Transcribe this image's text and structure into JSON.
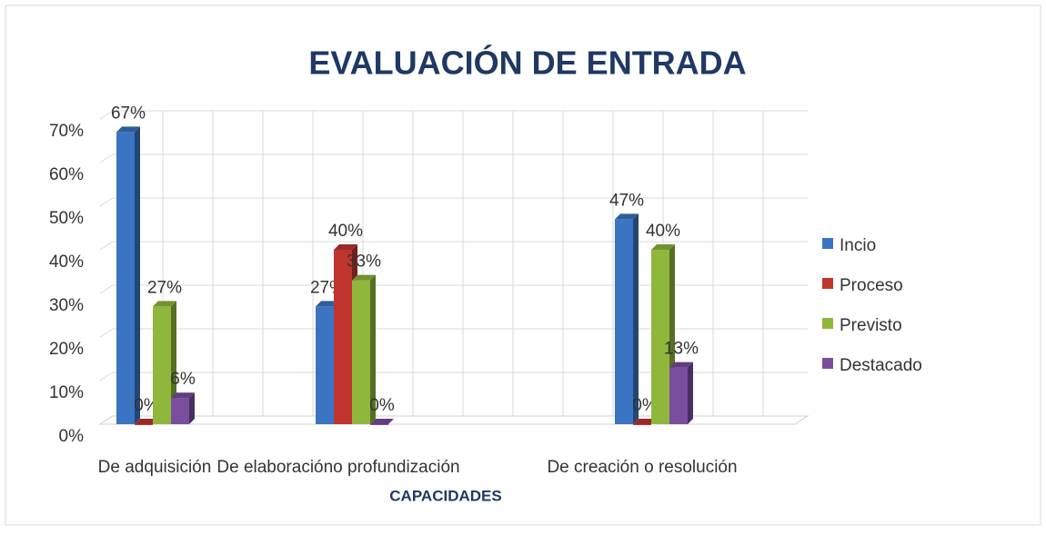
{
  "chart_data": {
    "type": "bar3d",
    "title": "EVALUACIÓN DE ENTRADA",
    "x_label": "CAPACIDADES",
    "categories": [
      "De adquisición",
      "De elaboracióno profundización",
      "De creación o resolución"
    ],
    "series": [
      {
        "name": "Incio",
        "color": "#3b74c2",
        "values": [
          67,
          27,
          47
        ],
        "value_labels": [
          "67%",
          "27%",
          "47%"
        ]
      },
      {
        "name": "Proceso",
        "color": "#c0342e",
        "values": [
          0,
          40,
          0
        ],
        "value_labels": [
          "0%",
          "40%",
          "0%"
        ]
      },
      {
        "name": "Previsto",
        "color": "#8fb73c",
        "values": [
          27,
          33,
          40
        ],
        "value_labels": [
          "27%",
          "33%",
          "40%"
        ]
      },
      {
        "name": "Destacado",
        "color": "#7a4e9e",
        "values": [
          6,
          0,
          13
        ],
        "value_labels": [
          "6%",
          "0%",
          "13%"
        ]
      }
    ],
    "ylim": [
      0,
      70
    ],
    "yticks": [
      {
        "value": 0,
        "label": "0%"
      },
      {
        "value": 10,
        "label": "10%"
      },
      {
        "value": 20,
        "label": "20%"
      },
      {
        "value": 30,
        "label": "30%"
      },
      {
        "value": 40,
        "label": "40%"
      },
      {
        "value": 50,
        "label": "50%"
      },
      {
        "value": 60,
        "label": "60%"
      },
      {
        "value": 70,
        "label": "70%"
      }
    ],
    "grid": true,
    "legend": "right"
  }
}
